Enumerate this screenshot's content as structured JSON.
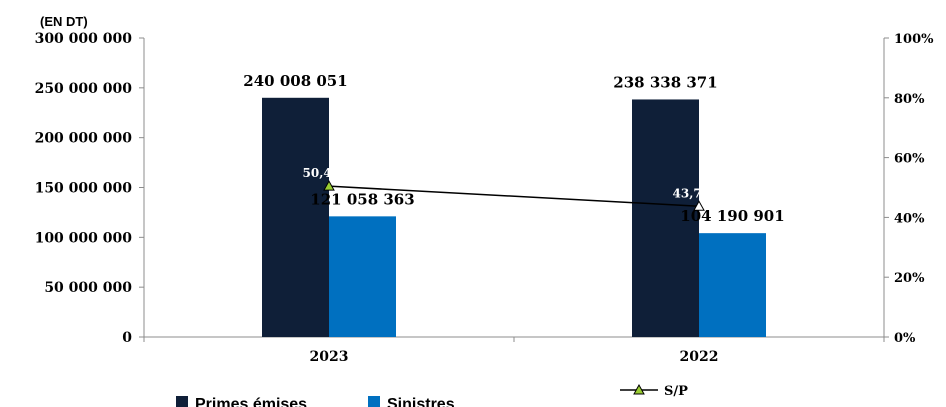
{
  "chart_data": {
    "type": "bar",
    "unit_label": "(EN DT)",
    "categories": [
      "2023",
      "2022"
    ],
    "series": [
      {
        "name": "Primes émises",
        "values": [
          240008051,
          238338371
        ],
        "labels": [
          "240 008 051",
          "238 338 371"
        ],
        "color": "#0f1f38"
      },
      {
        "name": "Sinistres",
        "values": [
          121058363,
          104190901
        ],
        "labels": [
          "121 058 363",
          "104 190 901"
        ],
        "color": "#0070c0"
      }
    ],
    "line_series": {
      "name": "S/P",
      "values": [
        50.44,
        43.72
      ],
      "labels": [
        "50,44%",
        "43,72%"
      ],
      "axis": "right",
      "marker_color": "#9acd32"
    },
    "ylim": [
      0,
      300000000
    ],
    "y_ticks": [
      0,
      50000000,
      100000000,
      150000000,
      200000000,
      250000000,
      300000000
    ],
    "y_tick_labels": [
      "0",
      "50 000 000",
      "100 000 000",
      "150 000 000",
      "200 000 000",
      "250 000 000",
      "300 000 000"
    ],
    "y2lim": [
      0,
      100
    ],
    "y2_ticks": [
      0,
      20,
      40,
      60,
      80,
      100
    ],
    "y2_tick_labels": [
      "0%",
      "20%",
      "40%",
      "60%",
      "80%",
      "100%"
    ],
    "grid": false,
    "legend_position": "bottom"
  }
}
